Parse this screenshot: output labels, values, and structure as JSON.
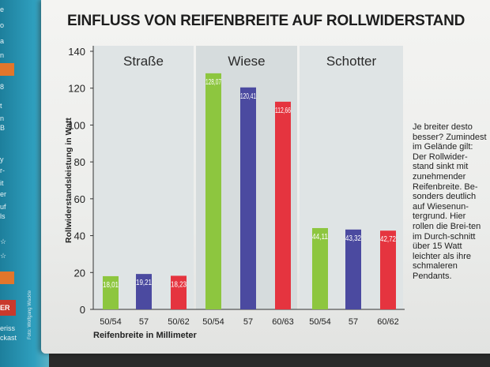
{
  "left_page": {
    "fragments": [
      "e",
      "o",
      "a",
      "n",
      "r",
      "8",
      "t",
      "n",
      "B",
      "y",
      "r-",
      "it",
      "er",
      "uf",
      "ls",
      "☆",
      "☆",
      "ER",
      "eriss",
      "ckast"
    ],
    "credit": "Foto: Wolfgang Wackte"
  },
  "side_text": "Je breiter desto besser? Zumindest im Gelände gilt: Der Rollwider-stand sinkt mit zunehmender Reifenbreite. Be-sonders deutlich auf Wiesenun-tergrund. Hier rollen die Brei-ten im Durch-schnitt über 15 Watt leichter als ihre schmaleren Pendants.",
  "colors": {
    "bar_green": "#8dc63f",
    "bar_blue": "#4b4aa0",
    "bar_red": "#e5343f",
    "panel_bg": "#dde3e4",
    "accent_blue": "#1d7f9c"
  },
  "chart_data": {
    "type": "bar",
    "title": "EINFLUSS VON REIFENBREITE AUF ROLLWIDERSTAND",
    "xlabel": "Reifenbreite in Millimeter",
    "ylabel": "Rollwiderstandsleistung in Watt",
    "ylim": [
      0,
      140
    ],
    "yticks": [
      0,
      20,
      40,
      60,
      80,
      100,
      120,
      140
    ],
    "grid": false,
    "groups": [
      {
        "name": "Straße",
        "bars": [
          {
            "label": "50/54",
            "value": 18.01,
            "value_label": "18,01"
          },
          {
            "label": "57",
            "value": 19.21,
            "value_label": "19,21"
          },
          {
            "label": "50/62",
            "value": 18.23,
            "value_label": "18,23"
          }
        ]
      },
      {
        "name": "Wiese",
        "bars": [
          {
            "label": "50/54",
            "value": 128.07,
            "value_label": "128,07"
          },
          {
            "label": "57",
            "value": 120.41,
            "value_label": "120,41"
          },
          {
            "label": "60/63",
            "value": 112.66,
            "value_label": "112,66"
          }
        ]
      },
      {
        "name": "Schotter",
        "bars": [
          {
            "label": "50/54",
            "value": 44.11,
            "value_label": "44,11"
          },
          {
            "label": "57",
            "value": 43.32,
            "value_label": "43,32"
          },
          {
            "label": "60/62",
            "value": 42.72,
            "value_label": "42,72"
          }
        ]
      }
    ]
  }
}
